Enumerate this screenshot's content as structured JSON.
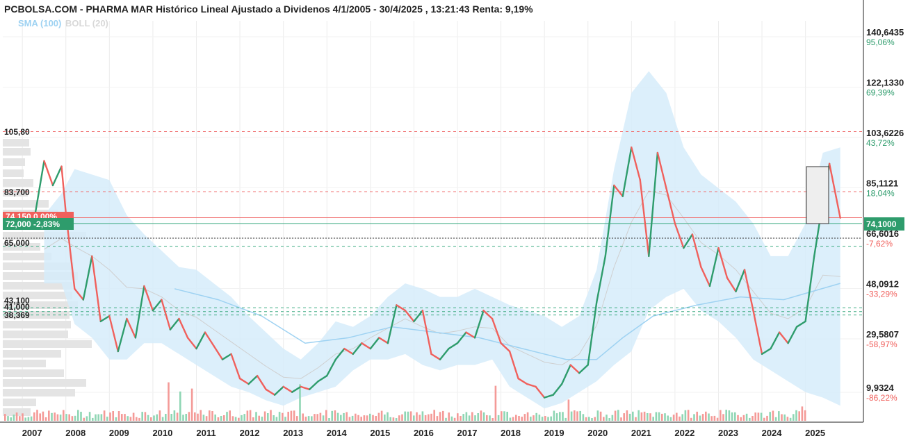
{
  "header": {
    "title": "PCBOLSA.COM - PHARMA MAR Histórico Lineal Ajustado a Dividenos 4/1/2005 - 30/4/2025 , 13:21:43 Renta: 9,19%",
    "legend_sma": "SMA (100)",
    "legend_boll": "BOLL (20)"
  },
  "colors": {
    "up": "#2e9c6c",
    "down": "#f0605c",
    "band": "#d6ecfa",
    "sma": "#9ed2f2",
    "boll_mid": "#cfcfcf",
    "red_dash": "#f07070",
    "green_dash": "#3aaa80",
    "current": "#2e9c6c"
  },
  "right_axis": [
    {
      "value": "140,6435",
      "pct": "95,06%",
      "pos": true
    },
    {
      "value": "122,1330",
      "pct": "69,39%",
      "pos": true
    },
    {
      "value": "103,6226",
      "pct": "43,72%",
      "pos": true
    },
    {
      "value": "85,1121",
      "pct": "18,04%",
      "pos": true
    },
    {
      "value": "66,6016",
      "pct": "-7,62%",
      "pos": false
    },
    {
      "value": "48,0912",
      "pct": "-33,29%",
      "pos": false
    },
    {
      "value": "29,5807",
      "pct": "-58,97%",
      "pos": false
    },
    {
      "value": "9,9324",
      "pct": "-86,22%",
      "pos": false
    }
  ],
  "current_price": "74,1000",
  "left_labels": {
    "l1": "105,80",
    "l2": "83,700",
    "l3": "65,000",
    "l4": "41,000",
    "l5": "38,369",
    "l6": "43,100"
  },
  "badges": {
    "green": "72,000  -2,83%",
    "red": "74,150  0,00%"
  },
  "chart_data": {
    "type": "line",
    "title": "PCBOLSA.COM - PHARMA MAR Histórico Lineal Ajustado a Dividenos 4/1/2005 - 30/4/2025 , 13:21:43 Renta: 9,19%",
    "x_years": [
      "2007",
      "2008",
      "2009",
      "2010",
      "2011",
      "2012",
      "2013",
      "2014",
      "2015",
      "2016",
      "2017",
      "2018",
      "2019",
      "2020",
      "2021",
      "2022",
      "2023",
      "2024",
      "2025"
    ],
    "ylim": [
      0,
      150
    ],
    "reference_lines": [
      105.8,
      83.7,
      74.15,
      72.0,
      66.6,
      65.0,
      41.0,
      38.369
    ],
    "last_price": 74.1,
    "series": [
      {
        "name": "PHARMA MAR",
        "points": [
          [
            2006.9,
            70
          ],
          [
            2007.1,
            72
          ],
          [
            2007.3,
            76
          ],
          [
            2007.5,
            95
          ],
          [
            2007.7,
            86
          ],
          [
            2007.9,
            93
          ],
          [
            2008.0,
            76
          ],
          [
            2008.2,
            48
          ],
          [
            2008.4,
            44
          ],
          [
            2008.6,
            60
          ],
          [
            2008.8,
            36
          ],
          [
            2009.0,
            38
          ],
          [
            2009.2,
            25
          ],
          [
            2009.4,
            37
          ],
          [
            2009.6,
            30
          ],
          [
            2009.8,
            49
          ],
          [
            2010.0,
            40
          ],
          [
            2010.2,
            44
          ],
          [
            2010.4,
            33
          ],
          [
            2010.6,
            37
          ],
          [
            2010.8,
            30
          ],
          [
            2011.0,
            26
          ],
          [
            2011.2,
            32
          ],
          [
            2011.4,
            27
          ],
          [
            2011.6,
            22
          ],
          [
            2011.8,
            24
          ],
          [
            2012.0,
            15
          ],
          [
            2012.2,
            13
          ],
          [
            2012.4,
            16
          ],
          [
            2012.6,
            11
          ],
          [
            2012.8,
            9
          ],
          [
            2013.0,
            12
          ],
          [
            2013.2,
            10
          ],
          [
            2013.4,
            12
          ],
          [
            2013.6,
            11
          ],
          [
            2013.8,
            14
          ],
          [
            2014.0,
            16
          ],
          [
            2014.2,
            22
          ],
          [
            2014.4,
            26
          ],
          [
            2014.6,
            24
          ],
          [
            2014.8,
            28
          ],
          [
            2015.0,
            26
          ],
          [
            2015.2,
            30
          ],
          [
            2015.4,
            28
          ],
          [
            2015.6,
            42
          ],
          [
            2015.8,
            40
          ],
          [
            2016.0,
            36
          ],
          [
            2016.2,
            40
          ],
          [
            2016.4,
            24
          ],
          [
            2016.6,
            22
          ],
          [
            2016.8,
            26
          ],
          [
            2017.0,
            28
          ],
          [
            2017.2,
            32
          ],
          [
            2017.4,
            30
          ],
          [
            2017.6,
            40
          ],
          [
            2017.8,
            37
          ],
          [
            2018.0,
            28
          ],
          [
            2018.2,
            25
          ],
          [
            2018.4,
            15
          ],
          [
            2018.6,
            13
          ],
          [
            2018.8,
            12
          ],
          [
            2019.0,
            8
          ],
          [
            2019.2,
            9
          ],
          [
            2019.4,
            13
          ],
          [
            2019.6,
            20
          ],
          [
            2019.8,
            17
          ],
          [
            2020.0,
            20
          ],
          [
            2020.2,
            43
          ],
          [
            2020.4,
            60
          ],
          [
            2020.6,
            86
          ],
          [
            2020.8,
            82
          ],
          [
            2021.0,
            100
          ],
          [
            2021.2,
            88
          ],
          [
            2021.4,
            60
          ],
          [
            2021.6,
            98
          ],
          [
            2021.8,
            85
          ],
          [
            2022.0,
            72
          ],
          [
            2022.2,
            63
          ],
          [
            2022.4,
            68
          ],
          [
            2022.6,
            56
          ],
          [
            2022.8,
            49
          ],
          [
            2023.0,
            63
          ],
          [
            2023.2,
            52
          ],
          [
            2023.4,
            47
          ],
          [
            2023.6,
            55
          ],
          [
            2023.8,
            40
          ],
          [
            2024.0,
            24
          ],
          [
            2024.2,
            26
          ],
          [
            2024.4,
            32
          ],
          [
            2024.6,
            28
          ],
          [
            2024.8,
            34
          ],
          [
            2025.0,
            36
          ],
          [
            2025.2,
            60
          ],
          [
            2025.4,
            80
          ],
          [
            2025.55,
            94
          ],
          [
            2025.7,
            82
          ],
          [
            2025.8,
            74.1
          ]
        ]
      }
    ]
  }
}
